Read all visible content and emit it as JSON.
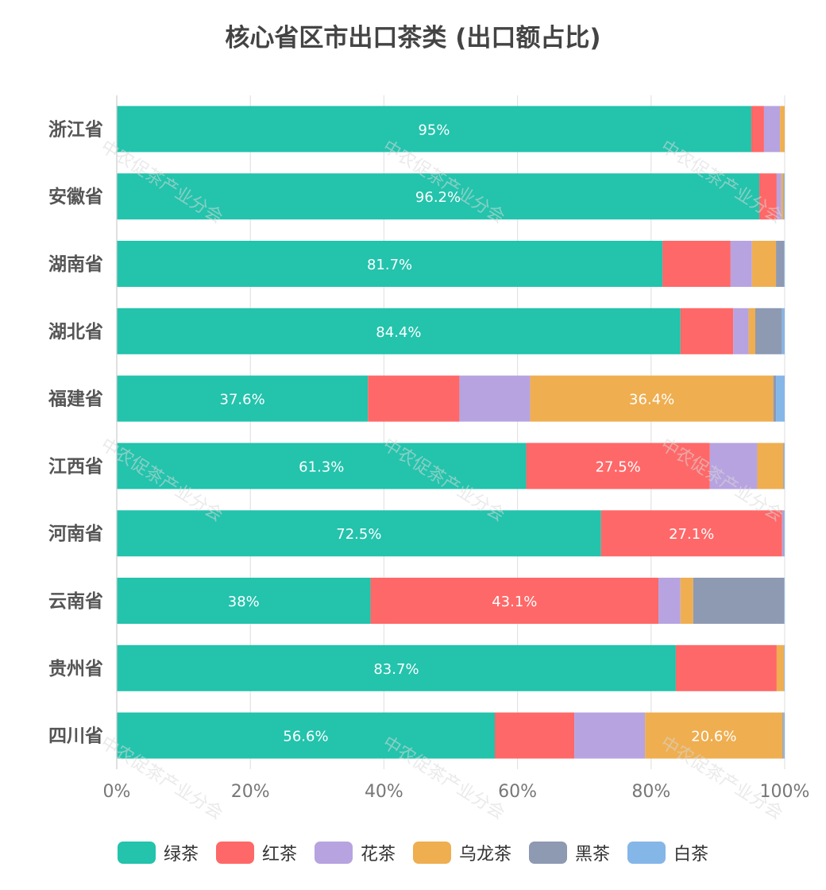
{
  "title": "核心省区市出口茶类 (出口额占比)",
  "watermark": "中农促茶产业分会",
  "chart_data": {
    "type": "bar",
    "orientation": "horizontal",
    "stacked": true,
    "categories": [
      "浙江省",
      "安徽省",
      "湖南省",
      "湖北省",
      "福建省",
      "江西省",
      "河南省",
      "云南省",
      "贵州省",
      "四川省"
    ],
    "xlim": [
      0,
      100
    ],
    "x_ticks": [
      "0%",
      "20%",
      "40%",
      "60%",
      "80%",
      "100%"
    ],
    "grid": true,
    "legend_position": "bottom",
    "series": [
      {
        "name": "绿茶",
        "color": "#23c3ac",
        "values": [
          95.0,
          96.2,
          81.7,
          84.4,
          37.6,
          61.3,
          72.5,
          38.0,
          83.7,
          56.6
        ]
      },
      {
        "name": "红茶",
        "color": "#ff6868",
        "values": [
          1.9,
          2.6,
          10.2,
          7.9,
          13.7,
          27.5,
          27.1,
          43.1,
          15.1,
          11.9
        ]
      },
      {
        "name": "花茶",
        "color": "#b7a3e0",
        "values": [
          2.4,
          0.7,
          3.2,
          2.3,
          10.6,
          7.1,
          0.2,
          3.3,
          0.0,
          10.6
        ]
      },
      {
        "name": "乌龙茶",
        "color": "#efae50",
        "values": [
          0.7,
          0.3,
          3.6,
          1.0,
          36.4,
          3.9,
          0.0,
          1.9,
          1.1,
          20.6
        ]
      },
      {
        "name": "黑茶",
        "color": "#8e99b2",
        "values": [
          0.0,
          0.1,
          1.2,
          4.0,
          0.4,
          0.1,
          0.1,
          13.6,
          0.0,
          0.1
        ]
      },
      {
        "name": "白茶",
        "color": "#85b6e8",
        "values": [
          0.0,
          0.1,
          0.1,
          0.4,
          1.3,
          0.1,
          0.1,
          0.1,
          0.1,
          0.2
        ]
      }
    ],
    "data_labels": [
      {
        "category": "浙江省",
        "series": "绿茶",
        "text": "95%"
      },
      {
        "category": "安徽省",
        "series": "绿茶",
        "text": "96.2%"
      },
      {
        "category": "湖南省",
        "series": "绿茶",
        "text": "81.7%"
      },
      {
        "category": "湖北省",
        "series": "绿茶",
        "text": "84.4%"
      },
      {
        "category": "福建省",
        "series": "绿茶",
        "text": "37.6%"
      },
      {
        "category": "福建省",
        "series": "乌龙茶",
        "text": "36.4%"
      },
      {
        "category": "江西省",
        "series": "绿茶",
        "text": "61.3%"
      },
      {
        "category": "江西省",
        "series": "红茶",
        "text": "27.5%"
      },
      {
        "category": "河南省",
        "series": "绿茶",
        "text": "72.5%"
      },
      {
        "category": "河南省",
        "series": "红茶",
        "text": "27.1%"
      },
      {
        "category": "云南省",
        "series": "绿茶",
        "text": "38%"
      },
      {
        "category": "云南省",
        "series": "红茶",
        "text": "43.1%"
      },
      {
        "category": "贵州省",
        "series": "绿茶",
        "text": "83.7%"
      },
      {
        "category": "四川省",
        "series": "绿茶",
        "text": "56.6%"
      },
      {
        "category": "四川省",
        "series": "乌龙茶",
        "text": "20.6%"
      }
    ]
  }
}
